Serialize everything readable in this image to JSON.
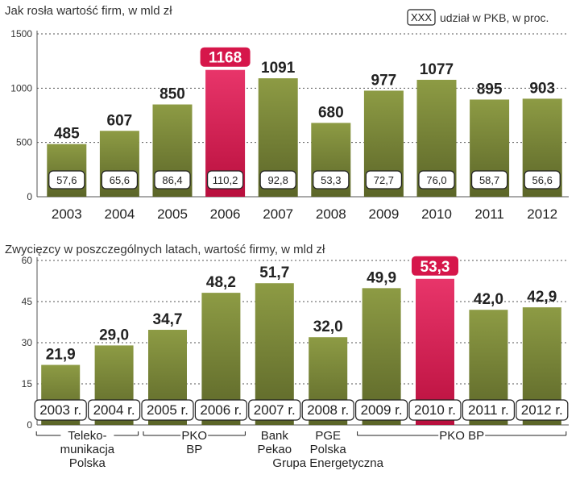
{
  "chart_data": [
    {
      "type": "bar",
      "title": "Jak rosła wartość firm, w mld zł",
      "legend_label": "udział w PKB, w proc.",
      "legend_box": "XXX",
      "yticks": [
        "0",
        "500",
        "1000",
        "1500"
      ],
      "ylim": [
        0,
        1500
      ],
      "categories": [
        "2003",
        "2004",
        "2005",
        "2006",
        "2007",
        "2008",
        "2009",
        "2010",
        "2011",
        "2012"
      ],
      "values": [
        485,
        607,
        850,
        1168,
        1091,
        680,
        977,
        1077,
        895,
        903
      ],
      "value_labels": [
        "485",
        "607",
        "850",
        "1168",
        "1091",
        "680",
        "977",
        "1077",
        "895",
        "903"
      ],
      "pkb_share_labels": [
        "57,6",
        "65,6",
        "86,4",
        "110,2",
        "92,8",
        "53,3",
        "72,7",
        "76,0",
        "58,7",
        "56,6"
      ],
      "highlight_index": 3,
      "colors": {
        "bar": "#6f7a32",
        "highlight": "#d6164a"
      }
    },
    {
      "type": "bar",
      "title": "Zwycięzcy w poszczególnych latach, wartość firmy,  w mld zł",
      "yticks": [
        "0",
        "15",
        "30",
        "45",
        "60"
      ],
      "ylim": [
        0,
        60
      ],
      "categories": [
        "2003 r.",
        "2004 r.",
        "2005 r.",
        "2006 r.",
        "2007 r.",
        "2008 r.",
        "2009 r.",
        "2010 r.",
        "2011 r.",
        "2012 r."
      ],
      "values": [
        21.9,
        29.0,
        34.7,
        48.2,
        51.7,
        32.0,
        49.9,
        53.3,
        42.0,
        42.9
      ],
      "value_labels": [
        "21,9",
        "29,0",
        "34,7",
        "48,2",
        "51,7",
        "32,0",
        "49,9",
        "53,3",
        "42,0",
        "42,9"
      ],
      "highlight_index": 7,
      "colors": {
        "bar": "#6f7a32",
        "highlight": "#d6164a"
      },
      "company_groups": [
        {
          "from": 0,
          "to": 1,
          "lines": [
            "Teleko-",
            "munikacja",
            "Polska"
          ]
        },
        {
          "from": 2,
          "to": 3,
          "lines": [
            "PKO",
            "BP"
          ]
        },
        {
          "from": 4,
          "to": 4,
          "lines": [
            "Bank",
            "Pekao"
          ]
        },
        {
          "from": 5,
          "to": 5,
          "lines": [
            "PGE",
            "Polska",
            "Grupa Energetyczna"
          ]
        },
        {
          "from": 6,
          "to": 9,
          "lines": [
            "PKO BP"
          ]
        }
      ]
    }
  ]
}
